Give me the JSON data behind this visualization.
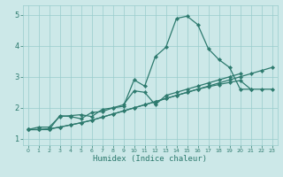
{
  "xlabel": "Humidex (Indice chaleur)",
  "xlim": [
    -0.5,
    23.5
  ],
  "ylim": [
    0.8,
    5.3
  ],
  "yticks": [
    1,
    2,
    3,
    4,
    5
  ],
  "xticks": [
    0,
    1,
    2,
    3,
    4,
    5,
    6,
    7,
    8,
    9,
    10,
    11,
    12,
    13,
    14,
    15,
    16,
    17,
    18,
    19,
    20,
    21,
    22,
    23
  ],
  "bg_color": "#cce8e8",
  "grid_color": "#99cccc",
  "line_color": "#2d7a6e",
  "line_width": 0.9,
  "marker": "D",
  "marker_size": 2.2,
  "series": [
    {
      "x": [
        0,
        1,
        2,
        3,
        4,
        5,
        6,
        7,
        8,
        9,
        10,
        11,
        12,
        13,
        14,
        15,
        16,
        17,
        18,
        19,
        20,
        21,
        22,
        23
      ],
      "y": [
        1.3,
        1.3,
        1.3,
        1.75,
        1.72,
        1.65,
        1.85,
        1.88,
        2.0,
        2.05,
        2.9,
        2.7,
        3.65,
        3.95,
        4.88,
        4.95,
        4.68,
        3.9,
        3.55,
        3.3,
        2.6,
        2.6,
        2.6,
        2.6
      ]
    },
    {
      "x": [
        0,
        1,
        2,
        3,
        4,
        5,
        6,
        7,
        8,
        9,
        10,
        11,
        12,
        13,
        14,
        15,
        16,
        17,
        18,
        19,
        20
      ],
      "y": [
        1.3,
        1.38,
        1.38,
        1.72,
        1.75,
        1.78,
        1.72,
        1.95,
        2.0,
        2.1,
        2.55,
        2.5,
        2.1,
        2.4,
        2.5,
        2.6,
        2.7,
        2.8,
        2.9,
        3.0,
        3.1
      ]
    },
    {
      "x": [
        0,
        1,
        2,
        3,
        4,
        5,
        6,
        7,
        8,
        9,
        10,
        11,
        12,
        13,
        14,
        15,
        16,
        17,
        18,
        19,
        20,
        21,
        22,
        23
      ],
      "y": [
        1.3,
        1.3,
        1.32,
        1.38,
        1.45,
        1.52,
        1.6,
        1.7,
        1.8,
        1.9,
        2.0,
        2.1,
        2.2,
        2.3,
        2.4,
        2.5,
        2.6,
        2.7,
        2.8,
        2.9,
        3.0,
        3.1,
        3.2,
        3.3
      ]
    },
    {
      "x": [
        0,
        1,
        2,
        3,
        4,
        5,
        6,
        7,
        8,
        9,
        10,
        11,
        12,
        13,
        14,
        15,
        16,
        17,
        18,
        19,
        20,
        21
      ],
      "y": [
        1.3,
        1.3,
        1.32,
        1.38,
        1.45,
        1.52,
        1.6,
        1.7,
        1.8,
        1.9,
        2.0,
        2.1,
        2.2,
        2.3,
        2.4,
        2.5,
        2.6,
        2.68,
        2.75,
        2.82,
        2.88,
        2.6
      ]
    }
  ]
}
